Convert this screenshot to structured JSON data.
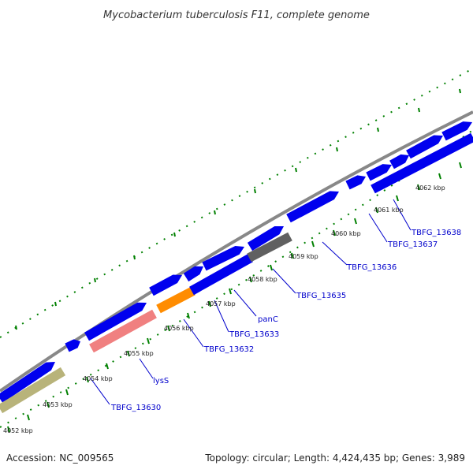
{
  "title": "Mycobacterium tuberculosis F11, complete genome",
  "footer": {
    "accession": "Accession: NC_009565",
    "stats": "Topology: circular; Length: 4,424,435 bp; Genes: 3,989"
  },
  "colors": {
    "background": "#ffffff",
    "backbone": "#888888",
    "gene_blue": "#0000ee",
    "gene_pink": "#f08080",
    "gene_orange": "#ff8c00",
    "gene_gray": "#606060",
    "gene_khaki": "#b8b37a",
    "tick": "#008000",
    "label": "#0000cc"
  },
  "scale_ticks": [
    "4052 kbp",
    "4053 kbp",
    "4054 kbp",
    "4055 kbp",
    "4056 kbp",
    "4057 kbp",
    "4058 kbp",
    "4059 kbp",
    "4060 kbp",
    "4061 kbp",
    "4062 kbp"
  ],
  "gene_labels": [
    "TBFG_13630",
    "lysS",
    "TBFG_13632",
    "TBFG_13633",
    "panC",
    "TBFG_13635",
    "TBFG_13636",
    "TBFG_13637",
    "TBFG_13638"
  ]
}
